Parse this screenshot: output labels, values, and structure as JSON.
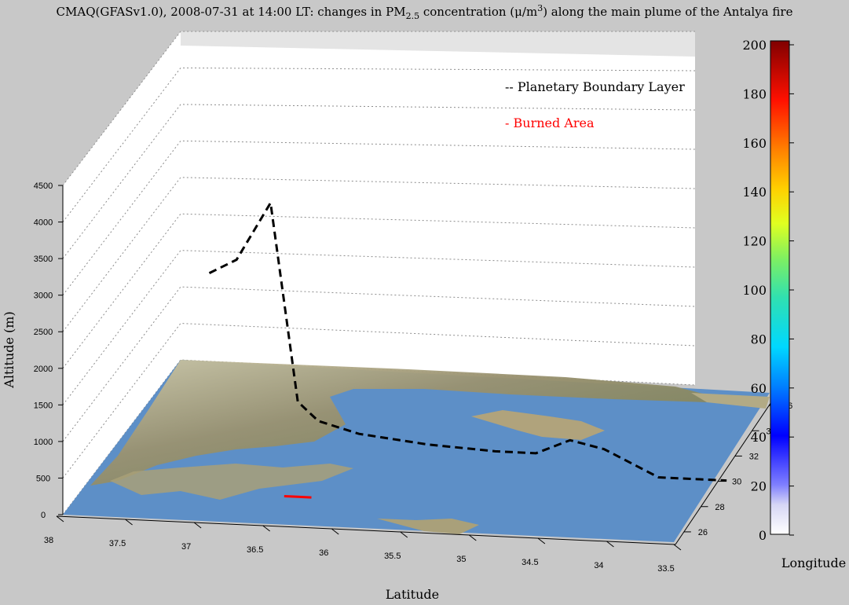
{
  "title_parts": {
    "pre": "CMAQ(GFASv1.0), 2008-07-31 at 14:00 LT: changes in PM",
    "sub": "2.5",
    "mid": " concentration (μ/m",
    "sup": "3",
    "post": ") along the main plume of the Antalya fire"
  },
  "chart_data": {
    "type": "line",
    "title": "CMAQ(GFASv1.0), 2008-07-31 at 14:00 LT: changes in PM2.5 concentration (μ/m3) along the main plume of the Antalya fire",
    "xlabel": "Latitude",
    "ylabel": "Longitude",
    "zlabel": "Altitude (m)",
    "x_ticks": [
      "38",
      "37.5",
      "37",
      "36.5",
      "36",
      "35.5",
      "35",
      "34.5",
      "34",
      "33.5"
    ],
    "y_ticks": [
      "26",
      "28",
      "30",
      "32",
      "34",
      "36"
    ],
    "z_ticks": [
      "0",
      "500",
      "1000",
      "1500",
      "2000",
      "2500",
      "3000",
      "3500",
      "4000",
      "4500"
    ],
    "zlim": [
      0,
      4500
    ],
    "grid": true,
    "series": [
      {
        "name": "Planetary Boundary Layer",
        "color": "#000000",
        "style": "dashed",
        "x": [
          37.4,
          37.2,
          36.95,
          36.75,
          36.6,
          36.3,
          35.8,
          35.3,
          35.0,
          34.75,
          34.5,
          34.1,
          33.6
        ],
        "z": [
          3000,
          3200,
          4000,
          1300,
          1050,
          900,
          800,
          750,
          750,
          950,
          850,
          500,
          500
        ]
      },
      {
        "name": "Burned Area",
        "color": "#ff0000",
        "style": "solid",
        "x": [
          36.85,
          36.65
        ],
        "z": [
          0,
          0
        ]
      }
    ],
    "colorbar": {
      "ticks": [
        "0",
        "20",
        "40",
        "60",
        "80",
        "100",
        "120",
        "140",
        "160",
        "180",
        "200"
      ],
      "range": [
        0,
        200
      ],
      "colormap": "jet"
    },
    "legend_placement": "top-right"
  }
}
